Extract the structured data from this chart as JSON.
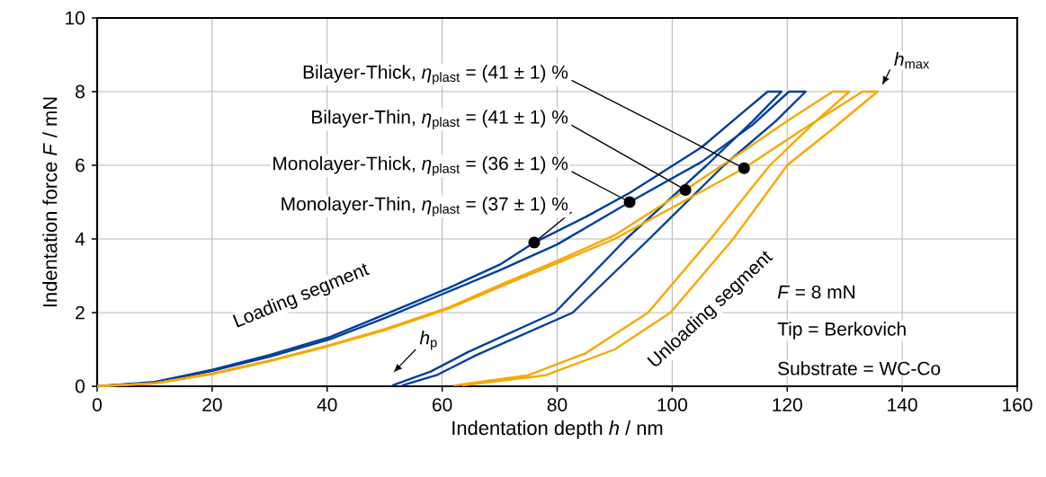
{
  "chart_data": {
    "type": "line",
    "xlabel": "Indentation depth *h* / nm",
    "ylabel": "Indentation force *F* / mN",
    "xlim": [
      0,
      160
    ],
    "xticks": [
      0,
      20,
      40,
      60,
      80,
      100,
      120,
      140,
      160
    ],
    "ylim": [
      0,
      10
    ],
    "yticks": [
      0,
      2,
      4,
      6,
      8,
      10
    ],
    "grid": true,
    "series": [
      {
        "color": "#003f9a",
        "x": [
          0,
          10,
          20,
          30,
          40.5,
          50,
          61.3,
          70,
          76,
          85,
          92.6,
          105.2,
          112,
          116.6,
          119,
          114,
          106,
          92,
          79.6,
          64.5,
          58,
          51.3
        ],
        "values": [
          0,
          0.12,
          0.45,
          0.85,
          1.34,
          1.95,
          2.68,
          3.3,
          3.9,
          4.6,
          5.25,
          6.5,
          7.4,
          8,
          8,
          7.2,
          6,
          4,
          2,
          0.93,
          0.4,
          0.02
        ]
      },
      {
        "color": "#003f9a",
        "x": [
          0,
          10,
          20,
          30,
          40.5,
          50,
          60,
          70,
          80,
          92.6,
          105.2,
          114,
          120.3,
          123.2,
          118,
          109,
          96,
          82.7,
          66,
          59,
          53
        ],
        "values": [
          0,
          0.1,
          0.42,
          0.8,
          1.28,
          1.85,
          2.5,
          3.15,
          3.85,
          5,
          6.1,
          7.1,
          8,
          8,
          7.2,
          6,
          4,
          2,
          0.85,
          0.3,
          0.02
        ]
      },
      {
        "color": "#f5a800",
        "x": [
          0,
          10,
          20,
          30,
          40,
          50,
          61.3,
          70,
          80.1,
          90,
          102.3,
          112,
          120,
          127.9,
          130.8,
          125,
          117,
          106.7,
          95.8,
          85,
          75,
          62
        ],
        "values": [
          0,
          0.08,
          0.35,
          0.7,
          1.1,
          1.55,
          2.15,
          2.75,
          3.41,
          4.1,
          5.33,
          6.35,
          7.2,
          8,
          8,
          7.2,
          6,
          4,
          2,
          0.9,
          0.3,
          0.02
        ]
      },
      {
        "color": "#f5a800",
        "x": [
          0,
          10,
          20,
          30,
          40,
          50,
          61.3,
          70,
          80.1,
          90,
          102.3,
          112.5,
          122,
          133.1,
          135.7,
          128,
          120,
          110.6,
          99.7,
          90,
          78,
          63.5
        ],
        "values": [
          0,
          0.08,
          0.33,
          0.68,
          1.08,
          1.52,
          2.12,
          2.7,
          3.35,
          4.0,
          5.05,
          5.92,
          6.9,
          8,
          8,
          7,
          6,
          4,
          2,
          1.0,
          0.3,
          0.02
        ]
      }
    ],
    "annotations": [
      {
        "text": "Bilayer-Thick, *η*$_{plast}$ = (41 ± 1) %",
        "x": 112.5,
        "y": 5.92
      },
      {
        "text": "Bilayer-Thin, *η*$_{plast}$ = (41 ± 1) %",
        "x": 102.3,
        "y": 5.33
      },
      {
        "text": "Monolayer-Thick, *η*$_{plast}$ = (36 ± 1) %",
        "x": 92.6,
        "y": 5.0
      },
      {
        "text": "Monolayer-Thin, *η*$_{plast}$ = (37 ± 1) %",
        "x": 76,
        "y": 3.9
      },
      "*h*$_{max}$",
      "*h*$_{p}$",
      "Loading segment",
      "Unloading segment",
      "*F* =  8 mN",
      "Tip =  Berkovich",
      "Substrate = WC-Co"
    ]
  }
}
